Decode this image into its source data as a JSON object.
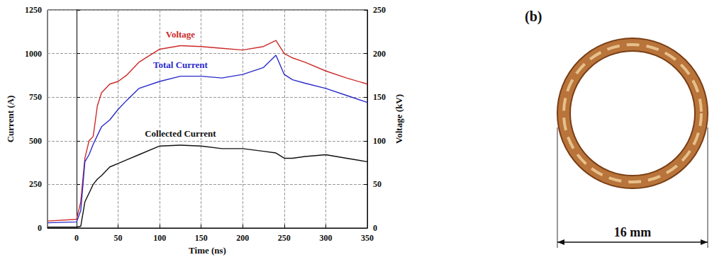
{
  "chart_data": {
    "type": "line",
    "x_label": "Time (ns)",
    "y_label": "Current (A)",
    "y2_label": "Voltage (kV)",
    "x": [
      -35,
      0,
      5,
      10,
      15,
      20,
      25,
      30,
      40,
      50,
      60,
      75,
      100,
      125,
      150,
      175,
      200,
      225,
      240,
      250,
      260,
      275,
      300,
      325,
      350
    ],
    "series": [
      {
        "name": "Voltage",
        "color": "#cc2a2a",
        "axis": "y2",
        "values": [
          8,
          10,
          30,
          80,
          100,
          105,
          140,
          155,
          165,
          168,
          175,
          190,
          205,
          209,
          208,
          206,
          204,
          208,
          215,
          200,
          195,
          190,
          180,
          172,
          165
        ]
      },
      {
        "name": "Total Current",
        "color": "#2a2acc",
        "values": [
          30,
          35,
          100,
          380,
          420,
          480,
          530,
          580,
          620,
          680,
          730,
          800,
          840,
          870,
          870,
          860,
          880,
          920,
          990,
          880,
          850,
          830,
          800,
          760,
          720
        ]
      },
      {
        "name": "Collected Current",
        "color": "#111111",
        "values": [
          5,
          5,
          10,
          150,
          200,
          250,
          280,
          300,
          350,
          370,
          390,
          420,
          470,
          475,
          470,
          455,
          455,
          440,
          430,
          400,
          400,
          410,
          420,
          400,
          380
        ]
      }
    ],
    "xlim": [
      -35,
      350
    ],
    "xticks": [
      0,
      50,
      100,
      150,
      200,
      250,
      300,
      350
    ],
    "ylim": [
      0,
      1250
    ],
    "yticks": [
      0,
      250,
      500,
      750,
      1000,
      1250
    ],
    "y2lim": [
      0,
      250
    ],
    "y2ticks": [
      0,
      50,
      100,
      150,
      200,
      250
    ],
    "grid": true
  },
  "panel_b": {
    "label": "(b)",
    "dimension": "16 mm"
  }
}
